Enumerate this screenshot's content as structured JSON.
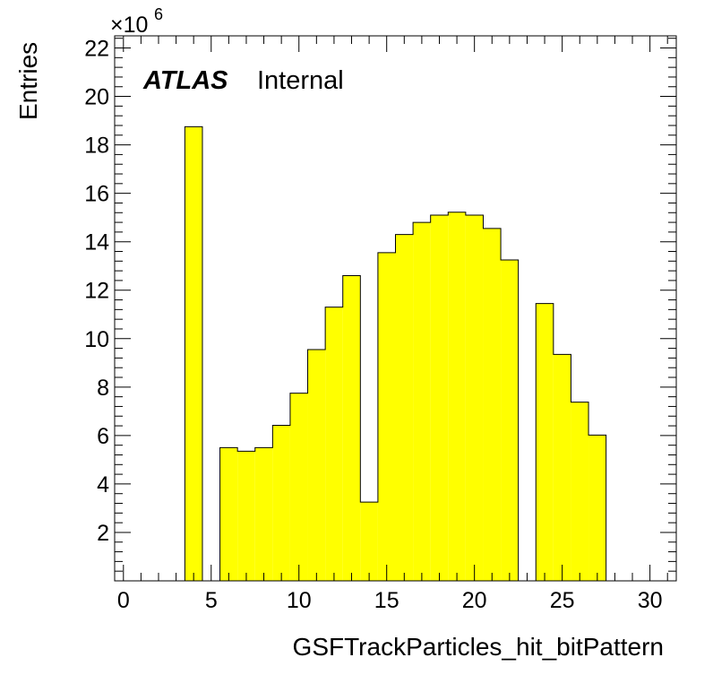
{
  "chart_data": {
    "type": "bar",
    "style": "histogram",
    "fill_color": "#ffff00",
    "line_color": "#000000",
    "xlabel": "GSFTrackParticles_hit_bitPattern",
    "ylabel": "Entries",
    "y_multiplier_label": "×10",
    "y_multiplier_exponent": "6",
    "experiment_label": "ATLAS",
    "status_label": "Internal",
    "xlim": [
      -0.5,
      31.5
    ],
    "ylim": [
      0,
      22.5
    ],
    "x_ticks": [
      0,
      5,
      10,
      15,
      20,
      25,
      30
    ],
    "y_ticks": [
      2,
      4,
      6,
      8,
      10,
      12,
      14,
      16,
      18,
      20,
      22
    ],
    "bin_width": 1,
    "bins": [
      {
        "low": 3.5,
        "value": 18.75
      },
      {
        "low": 5.5,
        "value": 5.5
      },
      {
        "low": 6.5,
        "value": 5.35
      },
      {
        "low": 7.5,
        "value": 5.5
      },
      {
        "low": 8.5,
        "value": 6.42
      },
      {
        "low": 9.5,
        "value": 7.75
      },
      {
        "low": 10.5,
        "value": 9.55
      },
      {
        "low": 11.5,
        "value": 11.3
      },
      {
        "low": 12.5,
        "value": 12.6
      },
      {
        "low": 13.5,
        "value": 3.25
      },
      {
        "low": 14.5,
        "value": 13.55
      },
      {
        "low": 15.5,
        "value": 14.3
      },
      {
        "low": 16.5,
        "value": 14.8
      },
      {
        "low": 17.5,
        "value": 15.1
      },
      {
        "low": 18.5,
        "value": 15.22
      },
      {
        "low": 19.5,
        "value": 15.1
      },
      {
        "low": 20.5,
        "value": 14.55
      },
      {
        "low": 21.5,
        "value": 13.25
      },
      {
        "low": 23.5,
        "value": 11.45
      },
      {
        "low": 24.5,
        "value": 9.35
      },
      {
        "low": 25.5,
        "value": 7.38
      },
      {
        "low": 26.5,
        "value": 6.02
      }
    ]
  }
}
